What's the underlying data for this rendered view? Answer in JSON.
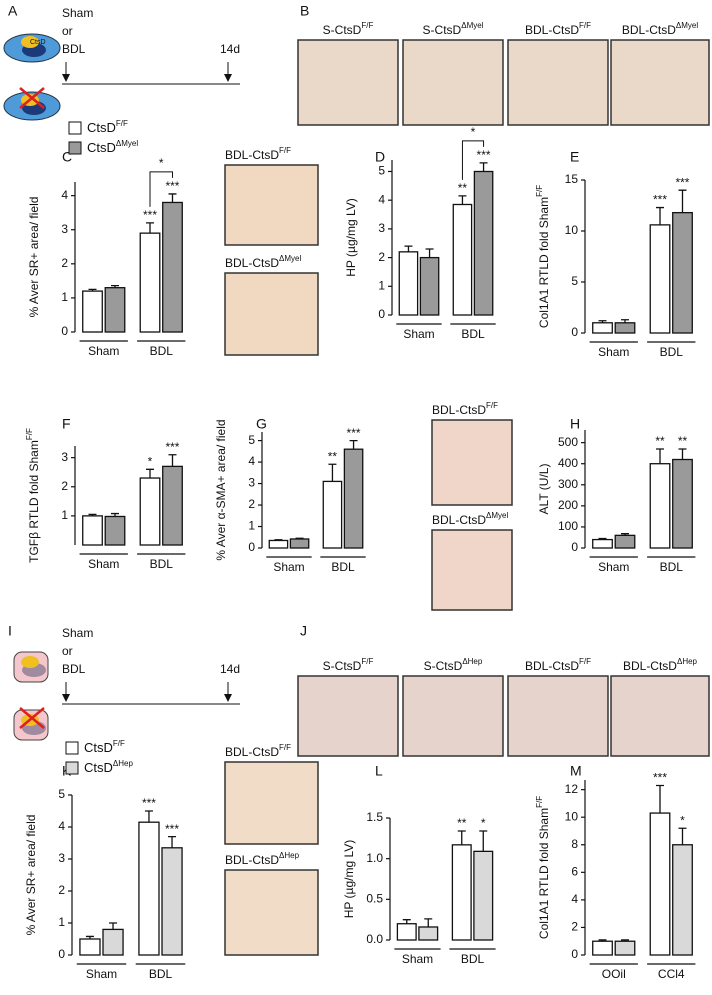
{
  "panel_letters": [
    "A",
    "B",
    "C",
    "D",
    "E",
    "F",
    "G",
    "H",
    "I",
    "J",
    "K",
    "L",
    "M"
  ],
  "schematic_top": {
    "cell_label": "CtsD",
    "labels": [
      "Sham",
      "or",
      "BDL"
    ],
    "end": "14d"
  },
  "schematic_bottom": {
    "labels": [
      "Sham",
      "or",
      "BDL"
    ],
    "end": "14d"
  },
  "micrographs_B": [
    {
      "base": "S-CtsD",
      "sup": "F/F"
    },
    {
      "base": "S-CtsD",
      "sup": "ΔMyel"
    },
    {
      "base": "BDL-CtsD",
      "sup": "F/F"
    },
    {
      "base": "BDL-CtsD",
      "sup": "ΔMyel"
    }
  ],
  "micrographs_C": [
    {
      "base": "BDL-CtsD",
      "sup": "F/F"
    },
    {
      "base": "BDL-CtsD",
      "sup": "ΔMyel"
    }
  ],
  "micrographs_G": [
    {
      "base": "BDL-CtsD",
      "sup": "F/F"
    },
    {
      "base": "BDL-CtsD",
      "sup": "ΔMyel"
    }
  ],
  "micrographs_J": [
    {
      "base": "S-CtsD",
      "sup": "F/F"
    },
    {
      "base": "S-CtsD",
      "sup": "ΔHep"
    },
    {
      "base": "BDL-CtsD",
      "sup": "F/F"
    },
    {
      "base": "BDL-CtsD",
      "sup": "ΔHep"
    }
  ],
  "micrographs_K": [
    {
      "base": "BDL-CtsD",
      "sup": "F/F"
    },
    {
      "base": "BDL-CtsD",
      "sup": "ΔHep"
    }
  ],
  "chart_data": [
    {
      "type": "bar",
      "ylabel": "% Aver SR+ area/ field",
      "categories": [
        "Sham",
        "BDL"
      ],
      "ylim": [
        0,
        4.4
      ],
      "yticks": [
        0,
        1,
        2,
        3,
        4
      ],
      "legend": true,
      "bracket": "*",
      "series": [
        {
          "name": "CtsD",
          "name_sup": "F/F",
          "color": "#ffffff",
          "values": [
            1.2,
            2.9
          ],
          "errors": [
            0.05,
            0.3
          ],
          "stars": [
            null,
            "***"
          ]
        },
        {
          "name": "CtsD",
          "name_sup": "ΔMyel",
          "color": "#9a9a9a",
          "values": [
            1.3,
            3.8
          ],
          "errors": [
            0.06,
            0.25
          ],
          "stars": [
            null,
            "***"
          ]
        }
      ]
    },
    {
      "type": "bar",
      "ylabel": "HP (µg/mg LV)",
      "categories": [
        "Sham",
        "BDL"
      ],
      "ylim": [
        0,
        5.4
      ],
      "yticks": [
        0,
        1,
        2,
        3,
        4,
        5
      ],
      "bracket": "*",
      "series": [
        {
          "color": "#ffffff",
          "values": [
            2.2,
            3.85
          ],
          "errors": [
            0.2,
            0.3
          ],
          "stars": [
            null,
            "**"
          ]
        },
        {
          "color": "#9a9a9a",
          "values": [
            2.0,
            5.0
          ],
          "errors": [
            0.3,
            0.3
          ],
          "stars": [
            null,
            "***"
          ]
        }
      ]
    },
    {
      "type": "bar",
      "ylabel": "Col1A1 RTLD fold Sham",
      "ylabel_sup": "F/F",
      "categories": [
        "Sham",
        "BDL"
      ],
      "ylim": [
        0,
        15
      ],
      "yticks": [
        0,
        5,
        10,
        15
      ],
      "series": [
        {
          "color": "#ffffff",
          "values": [
            1.0,
            10.6
          ],
          "errors": [
            0.2,
            1.7
          ],
          "stars": [
            null,
            "***"
          ]
        },
        {
          "color": "#9a9a9a",
          "values": [
            1.0,
            11.8
          ],
          "errors": [
            0.3,
            2.2
          ],
          "stars": [
            null,
            "***"
          ]
        }
      ]
    },
    {
      "type": "bar",
      "ylabel": "TGFβ RTLD fold Sham",
      "ylabel_sup": "F/F",
      "categories": [
        "Sham",
        "BDL"
      ],
      "ylim": [
        0,
        3.4
      ],
      "yticks": [
        1,
        2,
        3
      ],
      "series": [
        {
          "color": "#ffffff",
          "values": [
            1.0,
            2.3
          ],
          "errors": [
            0.05,
            0.3
          ],
          "stars": [
            null,
            "*"
          ]
        },
        {
          "color": "#9a9a9a",
          "values": [
            0.98,
            2.7
          ],
          "errors": [
            0.1,
            0.4
          ],
          "stars": [
            null,
            "***"
          ]
        }
      ]
    },
    {
      "type": "bar",
      "ylabel": "% Aver α-SMA+ area/ field",
      "categories": [
        "Sham",
        "BDL"
      ],
      "ylim": [
        0,
        5.4
      ],
      "yticks": [
        0,
        1,
        2,
        3,
        4,
        5
      ],
      "series": [
        {
          "color": "#ffffff",
          "values": [
            0.35,
            3.1
          ],
          "errors": [
            0.03,
            0.8
          ],
          "stars": [
            null,
            "**"
          ]
        },
        {
          "color": "#9a9a9a",
          "values": [
            0.42,
            4.6
          ],
          "errors": [
            0.03,
            0.4
          ],
          "stars": [
            null,
            "***"
          ]
        }
      ]
    },
    {
      "type": "bar",
      "ylabel": "ALT (U/L)",
      "categories": [
        "Sham",
        "BDL"
      ],
      "ylim": [
        0,
        560
      ],
      "yticks": [
        0,
        100,
        200,
        300,
        400,
        500
      ],
      "series": [
        {
          "color": "#ffffff",
          "values": [
            40,
            400
          ],
          "errors": [
            5,
            70
          ],
          "stars": [
            null,
            "**"
          ]
        },
        {
          "color": "#9a9a9a",
          "values": [
            60,
            420
          ],
          "errors": [
            8,
            50
          ],
          "stars": [
            null,
            "**"
          ]
        }
      ]
    },
    {
      "type": "bar",
      "ylabel": "% Aver SR+ area/ field",
      "categories": [
        "Sham",
        "BDL"
      ],
      "ylim": [
        0,
        5
      ],
      "yticks": [
        0,
        1,
        2,
        3,
        4,
        5
      ],
      "legend": true,
      "series": [
        {
          "name": "CtsD",
          "name_sup": "F/F",
          "color": "#ffffff",
          "values": [
            0.5,
            4.15
          ],
          "errors": [
            0.08,
            0.35
          ],
          "stars": [
            null,
            "***"
          ]
        },
        {
          "name": "CtsD",
          "name_sup": "ΔHep",
          "color": "#d9d9d9",
          "values": [
            0.8,
            3.35
          ],
          "errors": [
            0.2,
            0.35
          ],
          "stars": [
            null,
            "***"
          ]
        }
      ]
    },
    {
      "type": "bar",
      "ylabel": "HP (µg/mg LV)",
      "categories": [
        "Sham",
        "BDL"
      ],
      "ylim": [
        0,
        1.5
      ],
      "yticks": [
        {
          "value": 0,
          "label": "0.0"
        },
        {
          "value": 0.5,
          "label": "0.5"
        },
        {
          "value": 1,
          "label": "1.0"
        },
        {
          "value": 1.5,
          "label": "1.5"
        }
      ],
      "series": [
        {
          "color": "#ffffff",
          "values": [
            0.2,
            1.17
          ],
          "errors": [
            0.05,
            0.17
          ],
          "stars": [
            null,
            "**"
          ]
        },
        {
          "color": "#d9d9d9",
          "values": [
            0.16,
            1.09
          ],
          "errors": [
            0.1,
            0.25
          ],
          "stars": [
            null,
            "*"
          ]
        }
      ]
    },
    {
      "type": "bar",
      "ylabel": "Col1A1 RTLD fold Sham",
      "ylabel_sup": "F/F",
      "categories": [
        "OOil",
        "CCl4"
      ],
      "ylim": [
        0,
        12.7
      ],
      "yticks": [
        0,
        2,
        4,
        6,
        8,
        10,
        12
      ],
      "series": [
        {
          "color": "#ffffff",
          "values": [
            1.0,
            10.3
          ],
          "errors": [
            0.1,
            2.0
          ],
          "stars": [
            null,
            "***"
          ]
        },
        {
          "color": "#d9d9d9",
          "values": [
            1.0,
            8.0
          ],
          "errors": [
            0.1,
            1.2
          ],
          "stars": [
            null,
            "*"
          ]
        }
      ]
    }
  ]
}
